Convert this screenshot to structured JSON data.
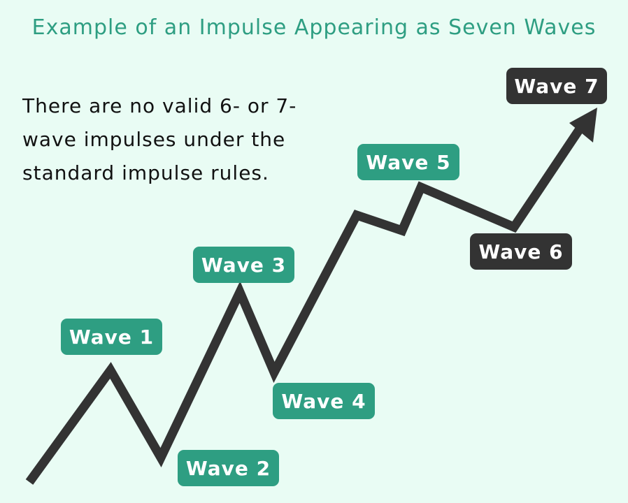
{
  "title": "Example of an Impulse Appearing as Seven Waves",
  "note": "There are no valid 6- or 7-wave impulses under the standard impulse rules.",
  "colors": {
    "background": "#e9fcf4",
    "accent": "#2e9e82",
    "dark": "#333333"
  },
  "labels": [
    "Wave 1",
    "Wave 2",
    "Wave 3",
    "Wave 4",
    "Wave 5",
    "Wave 6",
    "Wave 7"
  ]
}
